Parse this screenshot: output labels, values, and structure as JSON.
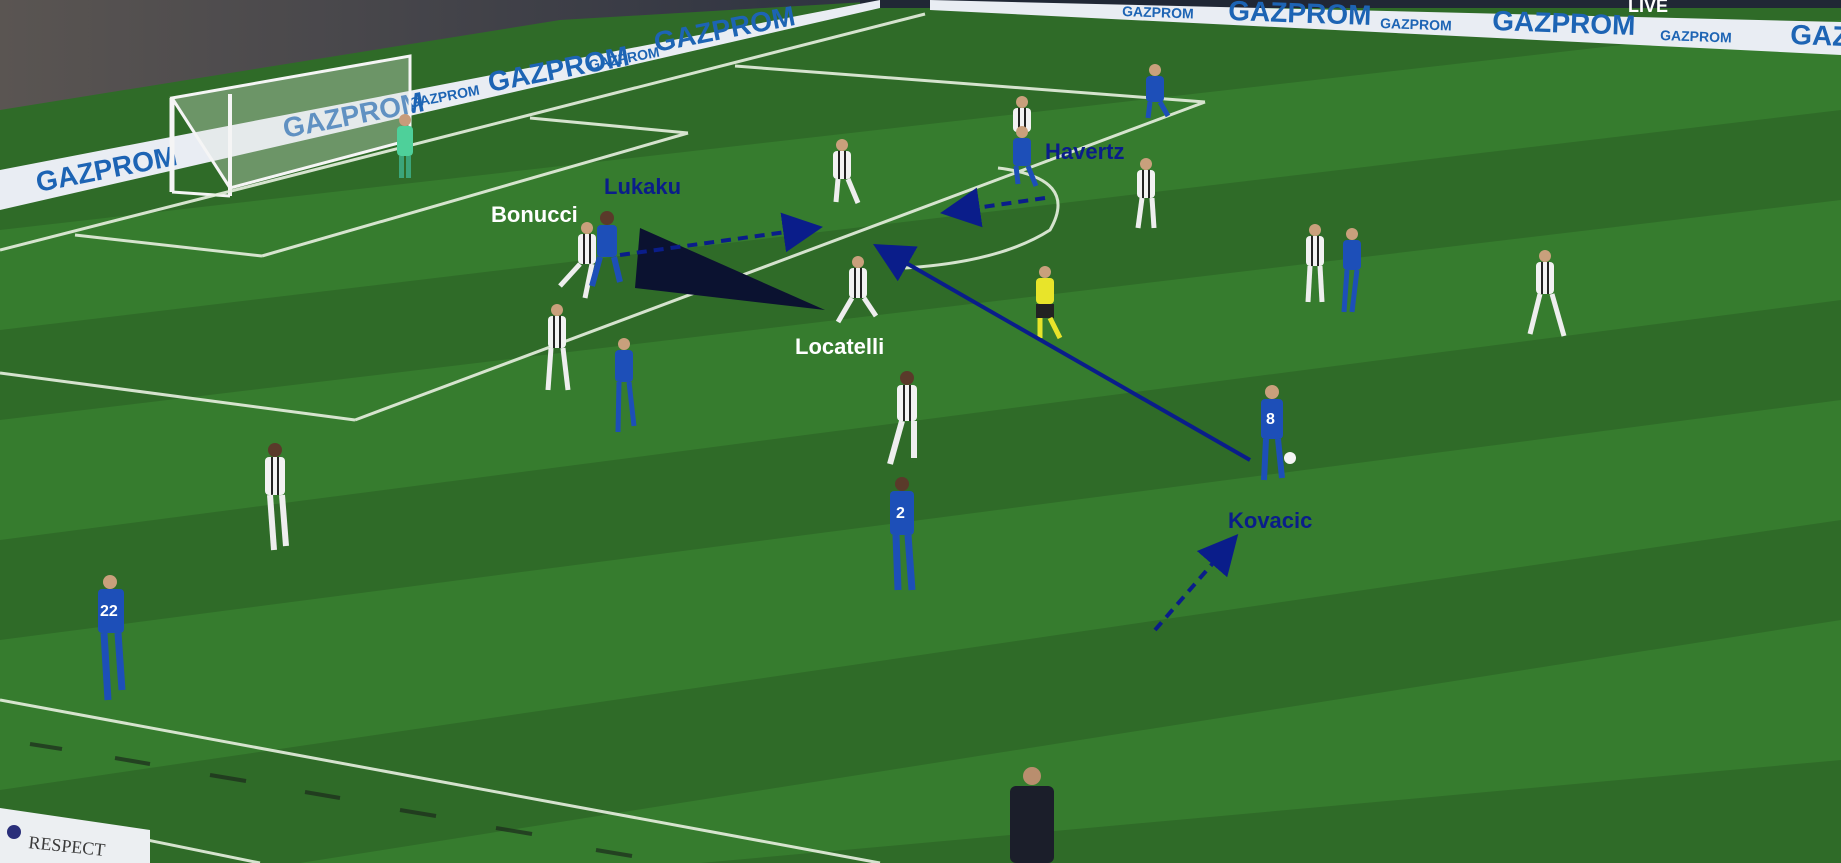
{
  "labels": {
    "lukaku": "Lukaku",
    "bonucci": "Bonucci",
    "havertz": "Havertz",
    "locatelli": "Locatelli",
    "kovacic": "Kovacic"
  },
  "board": {
    "sponsor": "GAZPROM",
    "live": "LIVE",
    "respect": "RESPECT"
  },
  "kits": {
    "n8": "8",
    "n2": "2",
    "n22": "22"
  },
  "colors": {
    "pitch_light": "#3a7f2f",
    "pitch_dark": "#2e6a26",
    "chelsea": "#1d4fb8",
    "juventus": "#f2f2f2",
    "annotation": "#0a1d8a",
    "triangle": "#0b1230"
  }
}
